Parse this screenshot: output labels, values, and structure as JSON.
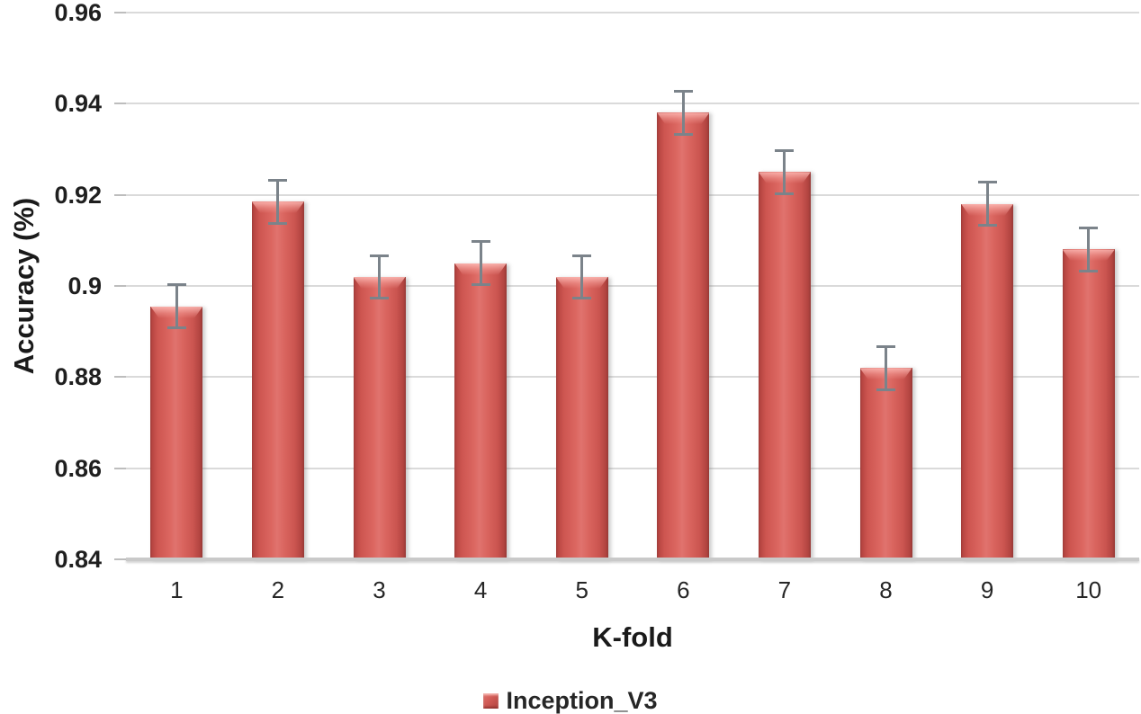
{
  "chart_data": {
    "type": "bar",
    "title": "",
    "xlabel": "K-fold",
    "ylabel": "Accuracy (%)",
    "categories": [
      "1",
      "2",
      "3",
      "4",
      "5",
      "6",
      "7",
      "8",
      "9",
      "10"
    ],
    "series": [
      {
        "name": "Inception_V3",
        "values": [
          0.8955,
          0.9185,
          0.902,
          0.905,
          0.902,
          0.938,
          0.925,
          0.882,
          0.918,
          0.908
        ],
        "errors": [
          0.005,
          0.005,
          0.005,
          0.005,
          0.005,
          0.005,
          0.005,
          0.005,
          0.005,
          0.005
        ]
      }
    ],
    "ylim": [
      0.84,
      0.96
    ],
    "yticks": [
      {
        "value": 0.96,
        "label": "0.96"
      },
      {
        "value": 0.94,
        "label": "0.94"
      },
      {
        "value": 0.92,
        "label": "0.92"
      },
      {
        "value": 0.9,
        "label": "0.9"
      },
      {
        "value": 0.88,
        "label": "0.88"
      },
      {
        "value": 0.86,
        "label": "0.86"
      },
      {
        "value": 0.84,
        "label": "0.84"
      }
    ],
    "grid": true,
    "legend_position": "bottom",
    "colors": {
      "bar_main": "#d0564f",
      "bar_edge_dark": "#9e3c39",
      "bar_highlight": "#e0736e",
      "error_bar": "#7b838a",
      "gridline": "#dadada",
      "axis_line": "#c9c9c9",
      "text": "#1f1f1f"
    }
  }
}
